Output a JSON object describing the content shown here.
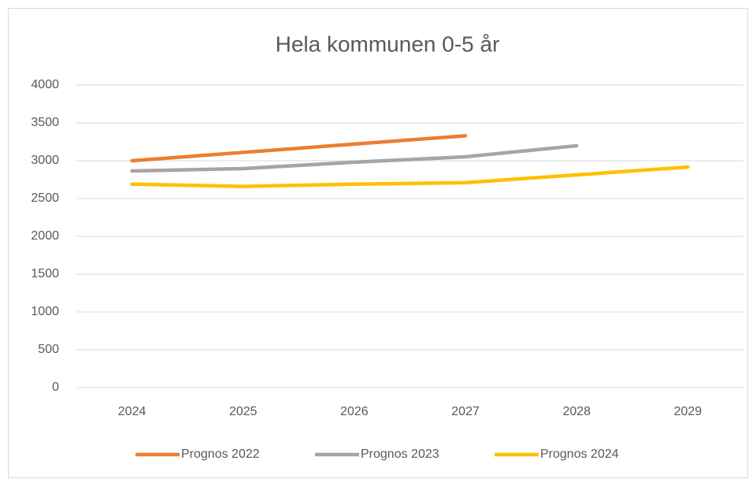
{
  "chart_data": {
    "type": "line",
    "title": "Hela kommunen 0-5 år",
    "categories": [
      "2024",
      "2025",
      "2026",
      "2027",
      "2028",
      "2029"
    ],
    "series": [
      {
        "name": "Prognos 2022",
        "color": "#ed7d31",
        "values": [
          3000,
          3110,
          3220,
          3330,
          null,
          null
        ]
      },
      {
        "name": "Prognos 2023",
        "color": "#a5a5a5",
        "values": [
          2865,
          2896,
          2980,
          3052,
          3198,
          null
        ]
      },
      {
        "name": "Prognos 2024",
        "color": "#ffc000",
        "values": [
          2690,
          2660,
          2690,
          2710,
          2812,
          2917
        ]
      }
    ],
    "ylim": [
      0,
      4000
    ],
    "yticks": [
      0,
      500,
      1000,
      1500,
      2000,
      2500,
      3000,
      3500,
      4000
    ],
    "grid": true,
    "legend": "bottom"
  }
}
